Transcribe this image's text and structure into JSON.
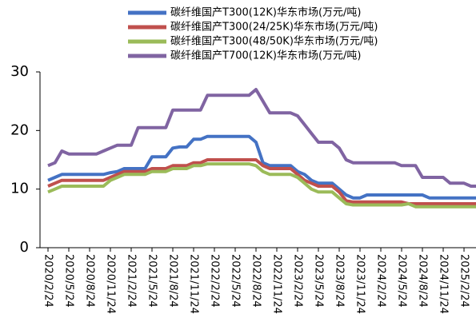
{
  "chart_data": {
    "type": "line",
    "categories": [
      "2020/2/24",
      null,
      null,
      "2020/5/24",
      null,
      null,
      "2020/8/24",
      null,
      null,
      "2020/11/24",
      null,
      null,
      "2021/2/24",
      null,
      null,
      "2021/5/24",
      null,
      null,
      "2021/8/24",
      null,
      null,
      "2021/11/24",
      null,
      null,
      "2022/2/24",
      null,
      null,
      "2022/5/24",
      null,
      null,
      "2022/8/24",
      null,
      null,
      "2022/11/24",
      null,
      null,
      "2023/2/24",
      null,
      null,
      "2023/5/24",
      null,
      null,
      "2023/8/24",
      null,
      null,
      "2023/11/24",
      null,
      null,
      "2024/2/24",
      null,
      null,
      "2024/5/24",
      null,
      null,
      "2024/8/24",
      null,
      null,
      "2024/11/24",
      null,
      null,
      "2025/2/24",
      null,
      null
    ],
    "series": [
      {
        "name": "碳纤维国产T300(12K)华东市场(万元/吨)",
        "color": "#4472c4",
        "values": [
          11.5,
          12,
          12.5,
          12.5,
          12.5,
          12.5,
          12.5,
          12.5,
          12.5,
          12.8,
          13,
          13.5,
          13.5,
          13.5,
          13.5,
          15.5,
          15.5,
          15.5,
          17,
          17.2,
          17.2,
          18.5,
          18.5,
          19,
          19,
          19,
          19,
          19,
          19,
          19,
          18,
          14.5,
          14,
          14,
          14,
          14,
          13,
          12.5,
          11.5,
          11,
          11,
          11,
          10,
          9,
          8.5,
          8.5,
          9,
          9,
          9,
          9,
          9,
          9,
          9,
          9,
          9,
          8.5,
          8.5,
          8.5,
          8.5,
          8.5,
          8.5,
          8.5,
          8.5
        ]
      },
      {
        "name": "碳纤维国产T300(24/25K)华东市场(万元/吨)",
        "color": "#c0504d",
        "values": [
          10.5,
          11,
          11.5,
          11.5,
          11.5,
          11.5,
          11.5,
          11.5,
          11.5,
          12,
          12.5,
          13,
          13,
          13,
          13,
          13.5,
          13.5,
          13.5,
          14,
          14,
          14,
          14.5,
          14.5,
          15,
          15,
          15,
          15,
          15,
          15,
          15,
          15,
          14,
          13.5,
          13.5,
          13.5,
          13.5,
          12.5,
          11.5,
          11,
          10.5,
          10.5,
          10.5,
          9.5,
          8,
          7.8,
          7.8,
          7.8,
          7.8,
          7.8,
          7.8,
          7.8,
          7.8,
          7.5,
          7.5,
          7.5,
          7.5,
          7.5,
          7.5,
          7.5,
          7.5,
          7.5,
          7.5,
          7.5
        ]
      },
      {
        "name": "碳纤维国产T300(48/50K)华东市场(万元/吨)",
        "color": "#9bbb59",
        "values": [
          9.5,
          10,
          10.5,
          10.5,
          10.5,
          10.5,
          10.5,
          10.5,
          10.5,
          11.5,
          12,
          12.5,
          12.5,
          12.5,
          12.5,
          13,
          13,
          13,
          13.5,
          13.5,
          13.5,
          14,
          14,
          14.3,
          14.3,
          14.3,
          14.3,
          14.3,
          14.3,
          14.3,
          14,
          13,
          12.5,
          12.5,
          12.5,
          12.5,
          12,
          11,
          10,
          9.5,
          9.5,
          9.5,
          8.5,
          7.5,
          7.3,
          7.3,
          7.3,
          7.3,
          7.3,
          7.3,
          7.3,
          7.3,
          7.5,
          7,
          7,
          7,
          7,
          7,
          7,
          7,
          7,
          7,
          7
        ]
      },
      {
        "name": "碳纤维国产T700(12K)华东市场(万元/吨)",
        "color": "#8064a2",
        "values": [
          14,
          14.5,
          16.5,
          16,
          16,
          16,
          16,
          16,
          16.5,
          17,
          17.5,
          17.5,
          17.5,
          20.5,
          20.5,
          20.5,
          20.5,
          20.5,
          23.5,
          23.5,
          23.5,
          23.5,
          23.5,
          26,
          26,
          26,
          26,
          26,
          26,
          26,
          27,
          25,
          23,
          23,
          23,
          23,
          22.5,
          21,
          19.5,
          18,
          18,
          18,
          17,
          15,
          14.5,
          14.5,
          14.5,
          14.5,
          14.5,
          14.5,
          14.5,
          14,
          14,
          14,
          12,
          12,
          12,
          12,
          11,
          11,
          11,
          10.5,
          10.5
        ]
      }
    ],
    "ylim": [
      0,
      30
    ],
    "yticks": [
      0,
      10,
      20,
      30
    ],
    "grid": false
  }
}
